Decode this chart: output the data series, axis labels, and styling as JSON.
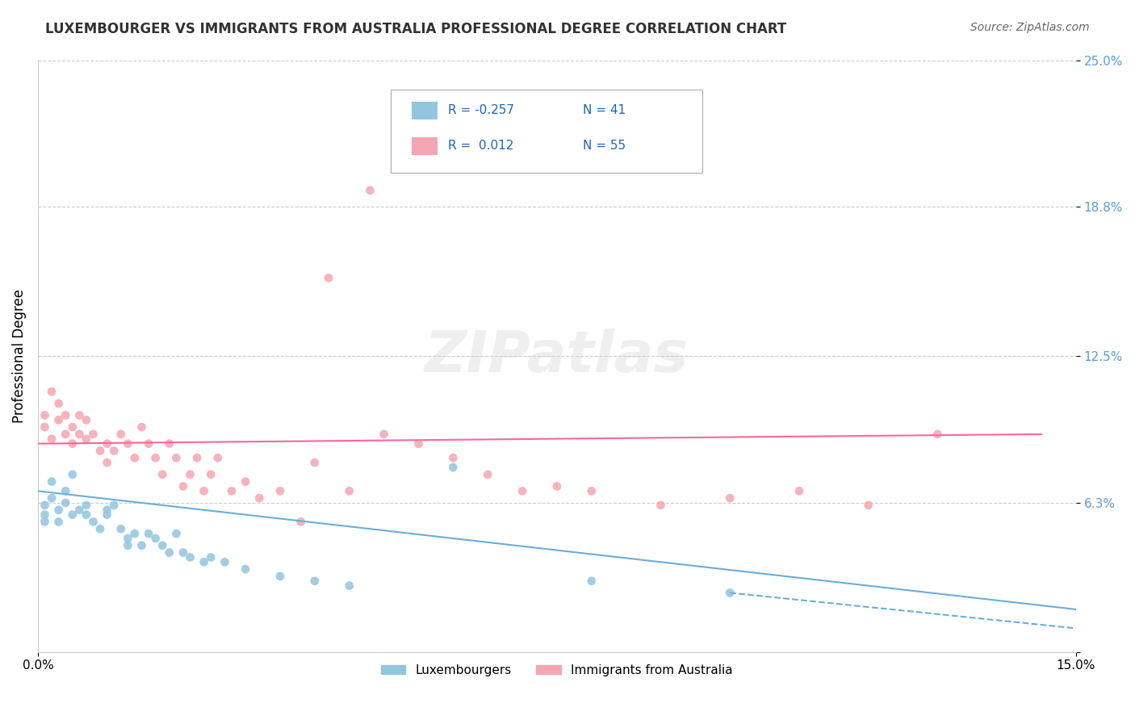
{
  "title": "LUXEMBOURGER VS IMMIGRANTS FROM AUSTRALIA PROFESSIONAL DEGREE CORRELATION CHART",
  "source": "Source: ZipAtlas.com",
  "xlabel_ticks": [
    "0.0%",
    "15.0%"
  ],
  "ylabel_ticks": [
    0.0,
    0.063,
    0.125,
    0.188,
    0.25
  ],
  "ylabel_labels": [
    "",
    "6.3%",
    "12.5%",
    "18.8%",
    "25.0%"
  ],
  "xlim": [
    0.0,
    0.15
  ],
  "ylim": [
    0.0,
    0.25
  ],
  "watermark": "ZIPatlas",
  "legend": {
    "blue_R": "-0.257",
    "blue_N": "41",
    "pink_R": "0.012",
    "pink_N": "55"
  },
  "blue_color": "#92c5de",
  "pink_color": "#f4a6b2",
  "trend_blue": "#6baed6",
  "trend_pink": "#f768a1",
  "blue_scatter": [
    [
      0.001,
      0.055
    ],
    [
      0.001,
      0.062
    ],
    [
      0.001,
      0.058
    ],
    [
      0.002,
      0.065
    ],
    [
      0.002,
      0.072
    ],
    [
      0.003,
      0.06
    ],
    [
      0.003,
      0.055
    ],
    [
      0.004,
      0.068
    ],
    [
      0.004,
      0.063
    ],
    [
      0.005,
      0.058
    ],
    [
      0.005,
      0.075
    ],
    [
      0.006,
      0.06
    ],
    [
      0.007,
      0.062
    ],
    [
      0.007,
      0.058
    ],
    [
      0.008,
      0.055
    ],
    [
      0.009,
      0.052
    ],
    [
      0.01,
      0.06
    ],
    [
      0.01,
      0.058
    ],
    [
      0.011,
      0.062
    ],
    [
      0.012,
      0.052
    ],
    [
      0.013,
      0.048
    ],
    [
      0.013,
      0.045
    ],
    [
      0.014,
      0.05
    ],
    [
      0.015,
      0.045
    ],
    [
      0.016,
      0.05
    ],
    [
      0.017,
      0.048
    ],
    [
      0.018,
      0.045
    ],
    [
      0.019,
      0.042
    ],
    [
      0.02,
      0.05
    ],
    [
      0.021,
      0.042
    ],
    [
      0.022,
      0.04
    ],
    [
      0.024,
      0.038
    ],
    [
      0.025,
      0.04
    ],
    [
      0.027,
      0.038
    ],
    [
      0.03,
      0.035
    ],
    [
      0.035,
      0.032
    ],
    [
      0.04,
      0.03
    ],
    [
      0.045,
      0.028
    ],
    [
      0.06,
      0.078
    ],
    [
      0.08,
      0.03
    ],
    [
      0.1,
      0.025
    ]
  ],
  "pink_scatter": [
    [
      0.001,
      0.1
    ],
    [
      0.001,
      0.095
    ],
    [
      0.002,
      0.11
    ],
    [
      0.002,
      0.09
    ],
    [
      0.003,
      0.105
    ],
    [
      0.003,
      0.098
    ],
    [
      0.004,
      0.1
    ],
    [
      0.004,
      0.092
    ],
    [
      0.005,
      0.095
    ],
    [
      0.005,
      0.088
    ],
    [
      0.006,
      0.1
    ],
    [
      0.006,
      0.092
    ],
    [
      0.007,
      0.098
    ],
    [
      0.007,
      0.09
    ],
    [
      0.008,
      0.092
    ],
    [
      0.009,
      0.085
    ],
    [
      0.01,
      0.088
    ],
    [
      0.01,
      0.08
    ],
    [
      0.011,
      0.085
    ],
    [
      0.012,
      0.092
    ],
    [
      0.013,
      0.088
    ],
    [
      0.014,
      0.082
    ],
    [
      0.015,
      0.095
    ],
    [
      0.016,
      0.088
    ],
    [
      0.017,
      0.082
    ],
    [
      0.018,
      0.075
    ],
    [
      0.019,
      0.088
    ],
    [
      0.02,
      0.082
    ],
    [
      0.021,
      0.07
    ],
    [
      0.022,
      0.075
    ],
    [
      0.023,
      0.082
    ],
    [
      0.024,
      0.068
    ],
    [
      0.025,
      0.075
    ],
    [
      0.026,
      0.082
    ],
    [
      0.028,
      0.068
    ],
    [
      0.03,
      0.072
    ],
    [
      0.032,
      0.065
    ],
    [
      0.035,
      0.068
    ],
    [
      0.038,
      0.055
    ],
    [
      0.04,
      0.08
    ],
    [
      0.042,
      0.158
    ],
    [
      0.045,
      0.068
    ],
    [
      0.048,
      0.195
    ],
    [
      0.05,
      0.092
    ],
    [
      0.055,
      0.088
    ],
    [
      0.06,
      0.082
    ],
    [
      0.065,
      0.075
    ],
    [
      0.07,
      0.068
    ],
    [
      0.075,
      0.07
    ],
    [
      0.08,
      0.068
    ],
    [
      0.09,
      0.062
    ],
    [
      0.1,
      0.065
    ],
    [
      0.11,
      0.068
    ],
    [
      0.12,
      0.062
    ],
    [
      0.13,
      0.092
    ]
  ],
  "blue_trend_x": [
    0.0,
    0.15
  ],
  "blue_trend_y": [
    0.068,
    0.018
  ],
  "pink_trend_x": [
    0.0,
    0.145
  ],
  "pink_trend_y": [
    0.088,
    0.092
  ]
}
